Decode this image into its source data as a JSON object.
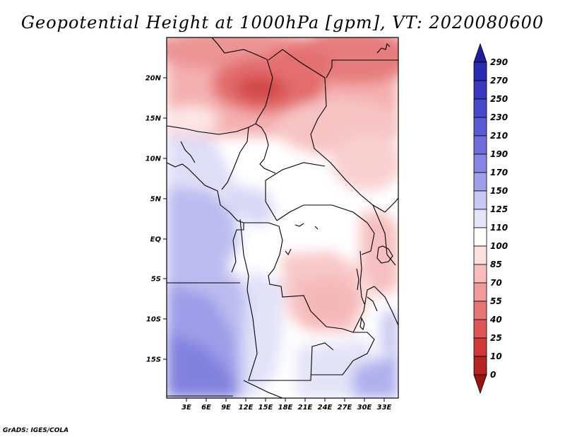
{
  "title": "Geopotential Height at 1000hPa [gpm], VT: 2020080600",
  "footer": "GrADS: IGES/COLA",
  "map": {
    "lat_labels": [
      "20N",
      "15N",
      "10N",
      "5N",
      "EQ",
      "5S",
      "10S",
      "15S"
    ],
    "lon_labels": [
      "3E",
      "6E",
      "9E",
      "12E",
      "15E",
      "18E",
      "21E",
      "24E",
      "27E",
      "30E",
      "33E"
    ]
  },
  "colorbar": {
    "levels": [
      "290",
      "270",
      "250",
      "230",
      "210",
      "190",
      "170",
      "150",
      "125",
      "110",
      "100",
      "85",
      "70",
      "55",
      "40",
      "25",
      "10",
      "0"
    ],
    "colors": [
      "#1f1f9a",
      "#2a2ab0",
      "#3838c0",
      "#4848cc",
      "#5a5ad4",
      "#6e6edc",
      "#8585e4",
      "#a0a0ea",
      "#c8c8f4",
      "#e6e6fa",
      "#ffffff",
      "#fde0e0",
      "#f8bcbc",
      "#f09a9a",
      "#e87575",
      "#e05555",
      "#d03838",
      "#b52323",
      "#9b1414"
    ]
  }
}
